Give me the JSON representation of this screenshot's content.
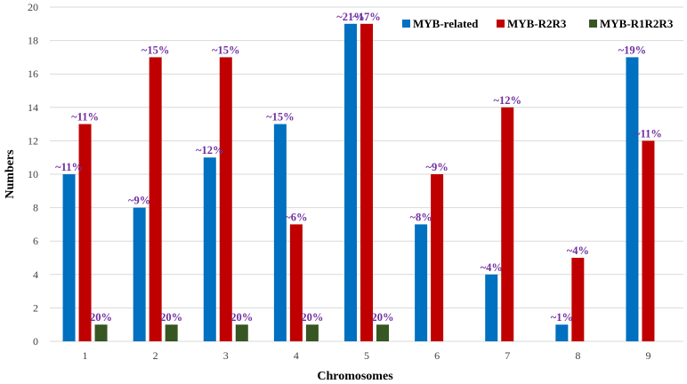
{
  "chart_data": {
    "type": "bar",
    "title": "",
    "xlabel": "Chromosomes",
    "ylabel": "Numbers",
    "ylim": [
      0,
      20
    ],
    "yticks": [
      0,
      2,
      4,
      6,
      8,
      10,
      12,
      14,
      16,
      18,
      20
    ],
    "grid": true,
    "legend_position": "top-right",
    "categories": [
      "1",
      "2",
      "3",
      "4",
      "5",
      "6",
      "7",
      "8",
      "9"
    ],
    "series": [
      {
        "name": "MYB-related",
        "color": "#0070c0",
        "values": [
          10,
          8,
          11,
          13,
          19,
          7,
          4,
          1,
          17
        ],
        "labels": [
          "~11%",
          "~9%",
          "~12%",
          "~15%",
          "~21%",
          "~8%",
          "~4%",
          "~1%",
          "~19%"
        ]
      },
      {
        "name": "MYB-R2R3",
        "color": "#c00000",
        "values": [
          13,
          17,
          17,
          7,
          19,
          10,
          14,
          5,
          12
        ],
        "labels": [
          "~11%",
          "~15%",
          "~15%",
          "~6%",
          "~17%",
          "~9%",
          "~12%",
          "~4%",
          "~11%"
        ]
      },
      {
        "name": "MYB-R1R2R3",
        "color": "#375623",
        "values": [
          1,
          1,
          1,
          1,
          1,
          null,
          null,
          null,
          null
        ],
        "labels": [
          "20%",
          "20%",
          "20%",
          "20%",
          "20%",
          null,
          null,
          null,
          null
        ]
      }
    ]
  }
}
